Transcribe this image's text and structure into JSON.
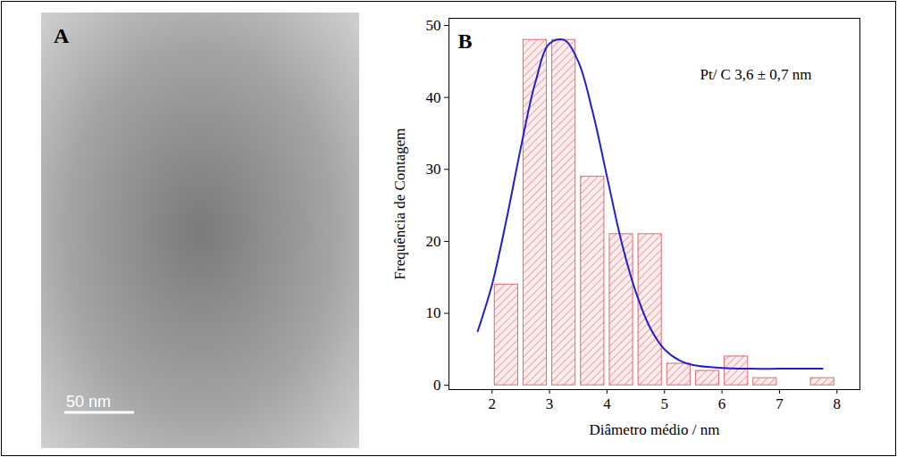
{
  "panel_a": {
    "label": "A",
    "scale_bar": "50 nm"
  },
  "chart_data": {
    "type": "histogram",
    "label": "B",
    "annotation": "Pt/ C 3,6 ± 0,7 nm",
    "x_label": "Diâmetro médio / nm",
    "y_label": "Frequência de Contagem",
    "bins": [
      2,
      2.5,
      3,
      3.5,
      4,
      4.5,
      5,
      5.5,
      6,
      6.5,
      7,
      7.5,
      8
    ],
    "counts": [
      14,
      48,
      48,
      29,
      21,
      21,
      3,
      2,
      4,
      1,
      0,
      1
    ],
    "color": "#e06a6a",
    "fit": {
      "type": "line",
      "color": "#2020d0",
      "x": [
        1.75,
        2,
        2.25,
        2.5,
        2.75,
        3,
        3.25,
        3.5,
        3.75,
        4,
        4.25,
        4.5,
        4.75,
        5,
        5.25,
        5.5,
        6,
        6.5,
        7,
        7.5,
        7.75
      ],
      "y": [
        7.5,
        14,
        23,
        33,
        42,
        47.5,
        48,
        45,
        38,
        29,
        20,
        13,
        8,
        5,
        3.5,
        2.8,
        2.4,
        2.3,
        2.3,
        2.3,
        2.3
      ]
    },
    "xlim": [
      1.25,
      8.4
    ],
    "xticks": [
      2,
      3,
      4,
      5,
      6,
      7,
      8
    ],
    "ylim": [
      -0.6,
      51
    ],
    "yticks": [
      0,
      10,
      20,
      30,
      40,
      50
    ]
  }
}
